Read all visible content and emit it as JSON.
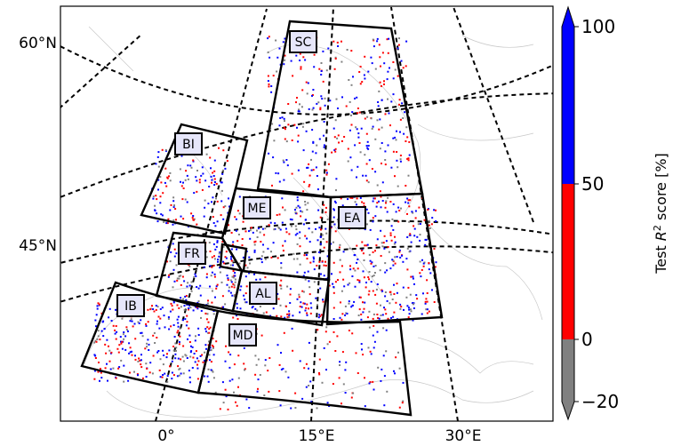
{
  "map": {
    "lat_labels": [
      "60°N",
      "45°N"
    ],
    "lon_labels": [
      "0°",
      "15°E",
      "30°E"
    ],
    "regions": [
      {
        "code": "SC"
      },
      {
        "code": "BI"
      },
      {
        "code": "ME"
      },
      {
        "code": "EA"
      },
      {
        "code": "FR"
      },
      {
        "code": "AL"
      },
      {
        "code": "IB"
      },
      {
        "code": "MD"
      }
    ]
  },
  "colorbar": {
    "title_prefix": "Test ",
    "title_var": "R",
    "title_sup": "2",
    "title_suffix": " score [%]",
    "ticks": [
      "100",
      "50",
      "0",
      "−20"
    ],
    "colors": {
      "high": "#0000ff",
      "mid": "#ff0000",
      "low": "#808080"
    },
    "range": [
      -20,
      100
    ],
    "bins": [
      -20,
      0,
      50,
      100
    ]
  },
  "colors": {
    "points_high": "#0000ff",
    "points_mid": "#ff0000",
    "points_low": "#808080",
    "box_fill": "#e6e6fa"
  }
}
